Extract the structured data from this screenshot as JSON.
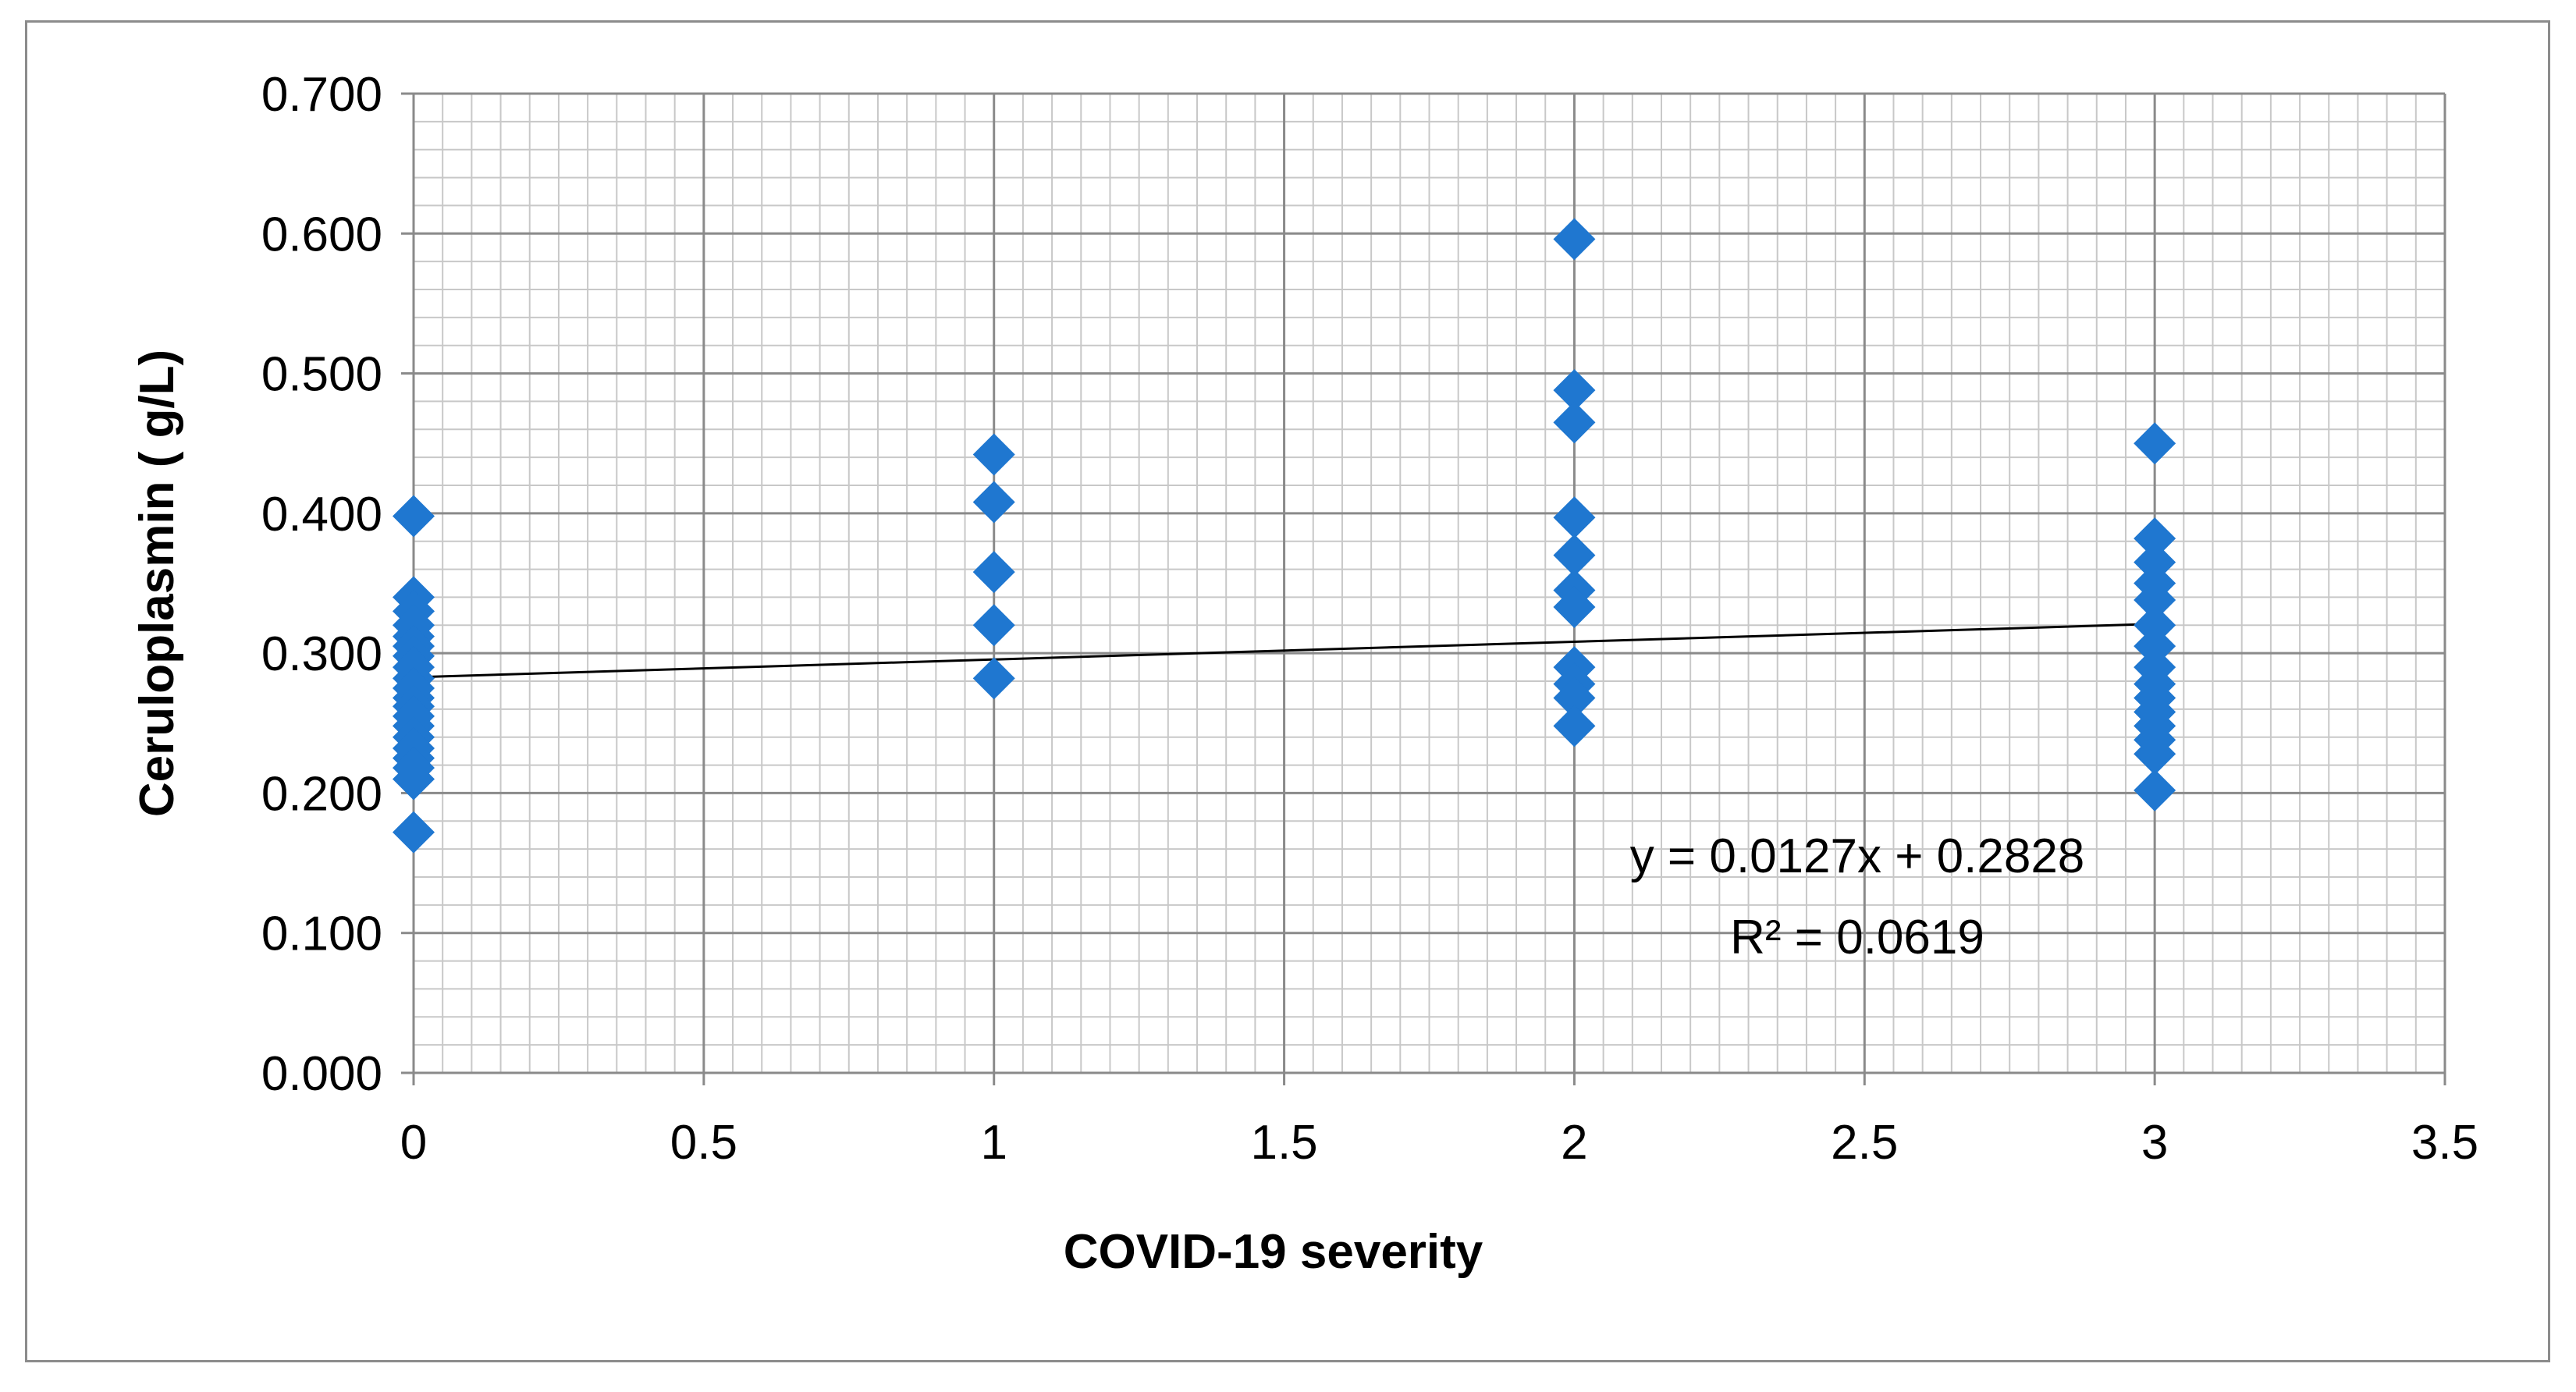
{
  "chart_data": {
    "type": "scatter",
    "title": "",
    "xlabel": "COVID-19 severity",
    "ylabel": "Ceruloplasmin ( g/L)",
    "xlim": [
      0,
      3.5
    ],
    "ylim": [
      0,
      0.7
    ],
    "x_ticks": [
      0,
      0.5,
      1,
      1.5,
      2,
      2.5,
      3,
      3.5
    ],
    "x_tick_labels": [
      "0",
      "0.5",
      "1",
      "1.5",
      "2",
      "2.5",
      "3",
      "3.5"
    ],
    "y_ticks": [
      0,
      0.1,
      0.2,
      0.3,
      0.4,
      0.5,
      0.6,
      0.7
    ],
    "y_tick_labels": [
      "0.000",
      "0.100",
      "0.200",
      "0.300",
      "0.400",
      "0.500",
      "0.600",
      "0.700"
    ],
    "grid": true,
    "marker_color": "#1f77d0",
    "series": [
      {
        "name": "Ceruloplasmin",
        "points": [
          [
            0,
            0.398
          ],
          [
            0,
            0.34
          ],
          [
            0,
            0.33
          ],
          [
            0,
            0.32
          ],
          [
            0,
            0.312
          ],
          [
            0,
            0.305
          ],
          [
            0,
            0.298
          ],
          [
            0,
            0.29
          ],
          [
            0,
            0.282
          ],
          [
            0,
            0.275
          ],
          [
            0,
            0.268
          ],
          [
            0,
            0.262
          ],
          [
            0,
            0.255
          ],
          [
            0,
            0.248
          ],
          [
            0,
            0.24
          ],
          [
            0,
            0.232
          ],
          [
            0,
            0.225
          ],
          [
            0,
            0.218
          ],
          [
            0,
            0.21
          ],
          [
            0,
            0.172
          ],
          [
            1,
            0.442
          ],
          [
            1,
            0.408
          ],
          [
            1,
            0.358
          ],
          [
            1,
            0.32
          ],
          [
            1,
            0.282
          ],
          [
            2,
            0.596
          ],
          [
            2,
            0.488
          ],
          [
            2,
            0.465
          ],
          [
            2,
            0.397
          ],
          [
            2,
            0.37
          ],
          [
            2,
            0.345
          ],
          [
            2,
            0.333
          ],
          [
            2,
            0.29
          ],
          [
            2,
            0.278
          ],
          [
            2,
            0.268
          ],
          [
            2,
            0.248
          ],
          [
            3,
            0.45
          ],
          [
            3,
            0.382
          ],
          [
            3,
            0.365
          ],
          [
            3,
            0.35
          ],
          [
            3,
            0.338
          ],
          [
            3,
            0.32
          ],
          [
            3,
            0.305
          ],
          [
            3,
            0.29
          ],
          [
            3,
            0.278
          ],
          [
            3,
            0.268
          ],
          [
            3,
            0.258
          ],
          [
            3,
            0.248
          ],
          [
            3,
            0.238
          ],
          [
            3,
            0.228
          ],
          [
            3,
            0.202
          ]
        ]
      }
    ],
    "trendline": {
      "slope": 0.0127,
      "intercept": 0.2828,
      "x_range": [
        0,
        3
      ],
      "color": "#000000",
      "equation_label": "y = 0.0127x + 0.2828",
      "r2_label": "R² = 0.0619"
    }
  }
}
